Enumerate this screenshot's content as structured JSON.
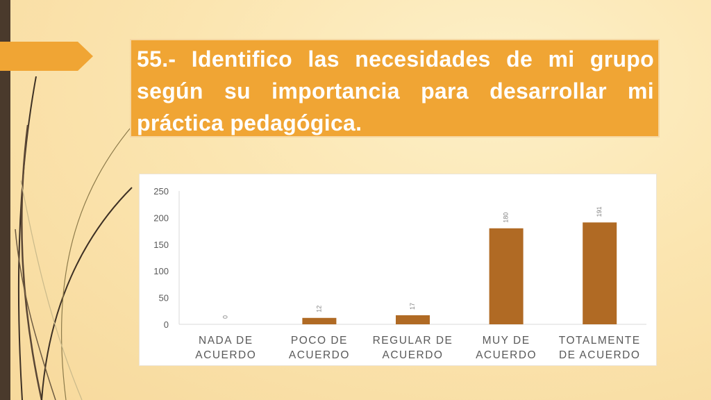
{
  "slide": {
    "title": "55.- Identifico las necesidades de mi grupo según su importancia para desarrollar mi práctica pedagógica."
  },
  "colors": {
    "title_bg": "#f0a534",
    "bar": "#b06a24",
    "left_bar": "#4a3a2c",
    "arrow_tab": "#f0a534"
  },
  "chart_data": {
    "type": "bar",
    "categories": [
      [
        "NADA DE",
        "ACUERDO"
      ],
      [
        "POCO DE",
        "ACUERDO"
      ],
      [
        "REGULAR DE",
        "ACUERDO"
      ],
      [
        "MUY DE",
        "ACUERDO"
      ],
      [
        "TOTALMENTE",
        "DE ACUERDO"
      ]
    ],
    "values": [
      0,
      12,
      17,
      180,
      191
    ],
    "data_labels": [
      "0",
      "12",
      "17",
      "180",
      "191"
    ],
    "ylim": [
      0,
      250
    ],
    "yticks": [
      0,
      50,
      100,
      150,
      200,
      250
    ],
    "title": "",
    "xlabel": "",
    "ylabel": "",
    "grid": false,
    "legend": "none"
  }
}
